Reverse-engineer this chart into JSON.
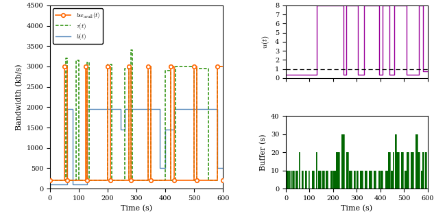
{
  "bw_avail_x": [
    0,
    50,
    50,
    60,
    60,
    125,
    125,
    130,
    130,
    200,
    200,
    210,
    210,
    275,
    275,
    280,
    280,
    340,
    340,
    350,
    350,
    420,
    420,
    430,
    430,
    500,
    500,
    510,
    510,
    580,
    580,
    600
  ],
  "bw_avail_y": [
    200,
    200,
    3000,
    3000,
    200,
    200,
    3000,
    3000,
    200,
    200,
    3000,
    3000,
    200,
    200,
    3000,
    3000,
    200,
    200,
    3000,
    3000,
    200,
    200,
    3000,
    3000,
    200,
    200,
    3000,
    3000,
    200,
    200,
    3000,
    3000
  ],
  "bw_markers_x": [
    0,
    50,
    60,
    125,
    130,
    200,
    210,
    275,
    280,
    340,
    350,
    420,
    430,
    500,
    510,
    580,
    600
  ],
  "bw_markers_y": [
    200,
    3000,
    200,
    3000,
    200,
    3000,
    200,
    3000,
    200,
    3000,
    200,
    3000,
    200,
    3000,
    200,
    3000,
    200
  ],
  "tau_x": [
    0,
    0,
    55,
    55,
    60,
    60,
    90,
    90,
    100,
    100,
    130,
    130,
    135,
    135,
    200,
    200,
    215,
    215,
    260,
    260,
    275,
    275,
    280,
    280,
    285,
    285,
    340,
    340,
    350,
    350,
    400,
    400,
    420,
    420,
    435,
    435,
    500,
    500,
    510,
    510,
    550,
    550,
    580,
    580,
    600
  ],
  "tau_y": [
    200,
    200,
    200,
    3200,
    3200,
    200,
    200,
    3150,
    3150,
    200,
    200,
    3100,
    3100,
    200,
    200,
    3050,
    3050,
    200,
    200,
    2950,
    2950,
    200,
    200,
    3400,
    3400,
    200,
    200,
    3000,
    3000,
    200,
    200,
    2900,
    2900,
    200,
    200,
    3000,
    3000,
    200,
    200,
    2950,
    2950,
    200,
    200,
    3000,
    3000
  ],
  "b_x": [
    0,
    0,
    60,
    60,
    80,
    80,
    130,
    130,
    160,
    160,
    210,
    210,
    245,
    245,
    260,
    260,
    285,
    285,
    350,
    350,
    380,
    380,
    400,
    400,
    430,
    430,
    445,
    445,
    500,
    500,
    520,
    520,
    580,
    580,
    600
  ],
  "b_y": [
    0,
    100,
    100,
    1950,
    1950,
    100,
    100,
    1950,
    1950,
    1950,
    1950,
    1950,
    1950,
    1450,
    1450,
    1950,
    1950,
    1950,
    1950,
    1950,
    1950,
    500,
    500,
    1450,
    1450,
    1950,
    1950,
    1950,
    1950,
    1950,
    1950,
    1950,
    1950,
    500,
    500
  ],
  "u_x": [
    0,
    130,
    130,
    245,
    245,
    255,
    255,
    305,
    305,
    330,
    330,
    395,
    395,
    410,
    410,
    440,
    440,
    460,
    460,
    510,
    510,
    565,
    565,
    580,
    580,
    600
  ],
  "u_y": [
    0.35,
    0.35,
    8,
    8,
    0.35,
    0.35,
    8,
    8,
    0.35,
    0.35,
    8,
    8,
    0.35,
    0.35,
    8,
    8,
    0.35,
    0.35,
    8,
    8,
    0.35,
    0.35,
    8,
    8,
    0.75,
    0.75
  ],
  "buf_x": [
    0,
    2,
    2,
    4,
    4,
    6,
    6,
    8,
    8,
    10,
    10,
    12,
    12,
    16,
    16,
    18,
    18,
    22,
    22,
    26,
    26,
    30,
    30,
    34,
    34,
    40,
    40,
    48,
    48,
    54,
    54,
    58,
    58,
    68,
    68,
    72,
    72,
    80,
    80,
    88,
    88,
    96,
    96,
    100,
    100,
    110,
    110,
    120,
    120,
    128,
    128,
    130,
    130,
    136,
    136,
    148,
    148,
    154,
    154,
    164,
    164,
    168,
    168,
    178,
    178,
    188,
    188,
    198,
    198,
    200,
    200,
    212,
    212,
    226,
    226,
    236,
    236,
    246,
    246,
    256,
    256,
    264,
    264,
    268,
    268,
    278,
    278,
    288,
    288,
    294,
    294,
    298,
    298,
    304,
    304,
    314,
    314,
    324,
    324,
    334,
    334,
    344,
    344,
    352,
    352,
    362,
    362,
    372,
    372,
    382,
    382,
    392,
    392,
    398,
    398,
    400,
    400,
    410,
    410,
    420,
    420,
    432,
    432,
    442,
    442,
    446,
    446,
    452,
    452,
    456,
    456,
    462,
    462,
    468,
    468,
    478,
    478,
    488,
    488,
    498,
    498,
    504,
    504,
    510,
    510,
    520,
    520,
    530,
    530,
    540,
    540,
    548,
    548,
    558,
    558,
    566,
    566,
    572,
    572,
    578,
    578,
    584,
    584,
    590,
    590,
    596,
    596,
    600
  ],
  "buf_y": [
    0,
    0,
    10,
    10,
    0,
    0,
    10,
    10,
    0,
    0,
    10,
    10,
    0,
    0,
    10,
    10,
    0,
    0,
    10,
    10,
    0,
    0,
    10,
    10,
    0,
    0,
    10,
    10,
    0,
    0,
    20,
    20,
    0,
    0,
    10,
    10,
    0,
    0,
    10,
    10,
    0,
    0,
    10,
    10,
    0,
    0,
    10,
    10,
    0,
    0,
    20,
    20,
    0,
    0,
    10,
    10,
    0,
    0,
    10,
    10,
    0,
    0,
    10,
    10,
    0,
    0,
    10,
    10,
    0,
    0,
    10,
    10,
    20,
    20,
    0,
    0,
    30,
    30,
    0,
    0,
    20,
    20,
    0,
    0,
    10,
    10,
    0,
    0,
    10,
    10,
    0,
    0,
    10,
    10,
    0,
    0,
    10,
    10,
    0,
    0,
    10,
    10,
    0,
    0,
    10,
    10,
    0,
    0,
    10,
    10,
    0,
    0,
    10,
    10,
    0,
    0,
    10,
    10,
    0,
    0,
    10,
    10,
    20,
    20,
    0,
    0,
    10,
    10,
    20,
    20,
    0,
    0,
    30,
    30,
    20,
    20,
    0,
    0,
    20,
    20,
    0,
    0,
    10,
    10,
    20,
    20,
    0,
    0,
    20,
    20,
    0,
    0,
    30,
    30,
    20,
    20,
    0,
    0,
    10,
    10,
    20,
    20,
    0,
    0,
    20,
    20,
    0,
    0
  ],
  "bw_color": "#FF6600",
  "tau_color": "#228B00",
  "b_color": "#5588BB",
  "u_color": "#990099",
  "buf_color": "#006600",
  "dashed_line_y": 1.0,
  "bw_ylim": [
    0,
    4500
  ],
  "u_ylim": [
    0,
    8
  ],
  "buf_ylim": [
    0,
    40
  ],
  "xlim": [
    0,
    600
  ],
  "bw_yticks": [
    0,
    500,
    1000,
    1500,
    2000,
    2500,
    3000,
    3500,
    4000,
    4500
  ],
  "u_yticks": [
    0,
    1,
    2,
    3,
    4,
    5,
    6,
    7,
    8
  ],
  "buf_yticks": [
    0,
    10,
    20,
    30,
    40
  ],
  "xticks": [
    0,
    100,
    200,
    300,
    400,
    500,
    600
  ]
}
